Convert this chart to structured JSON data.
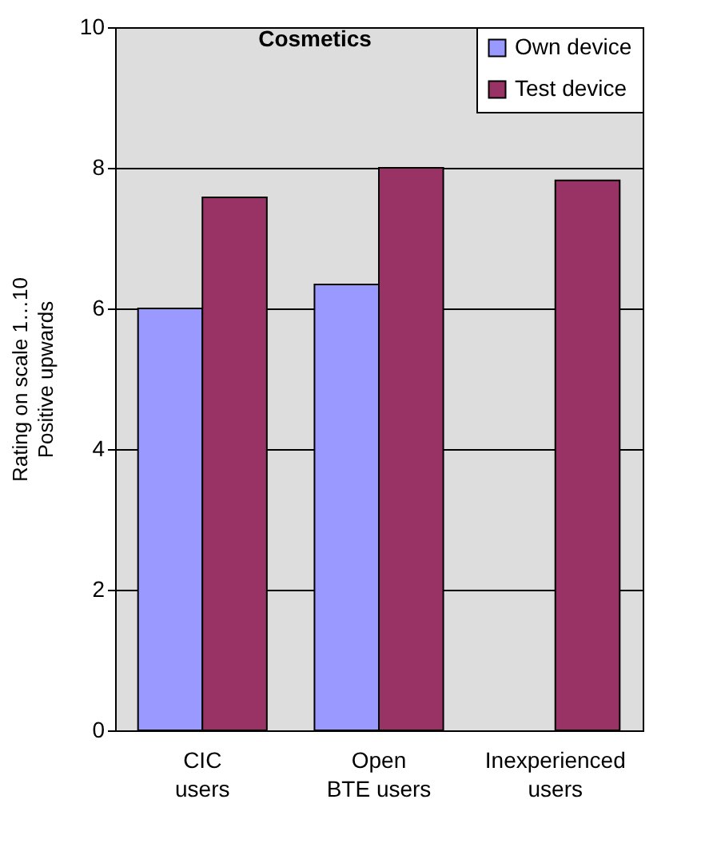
{
  "chart_data": {
    "type": "bar",
    "title": "Cosmetics",
    "ylabel": "Rating on scale 1…10\nPositive upwards",
    "categories": [
      "CIC\nusers",
      "Open\nBTE users",
      "Inexperienced\nusers"
    ],
    "series": [
      {
        "name": "Own device",
        "color": "#9999ff",
        "values": [
          6.0,
          6.34,
          null
        ]
      },
      {
        "name": "Test device",
        "color": "#993366",
        "values": [
          7.58,
          8.0,
          7.82
        ]
      }
    ],
    "ylim": [
      0,
      10
    ],
    "yticks": [
      0,
      2,
      4,
      6,
      8,
      10
    ],
    "grid": "y",
    "legend": "top right"
  }
}
